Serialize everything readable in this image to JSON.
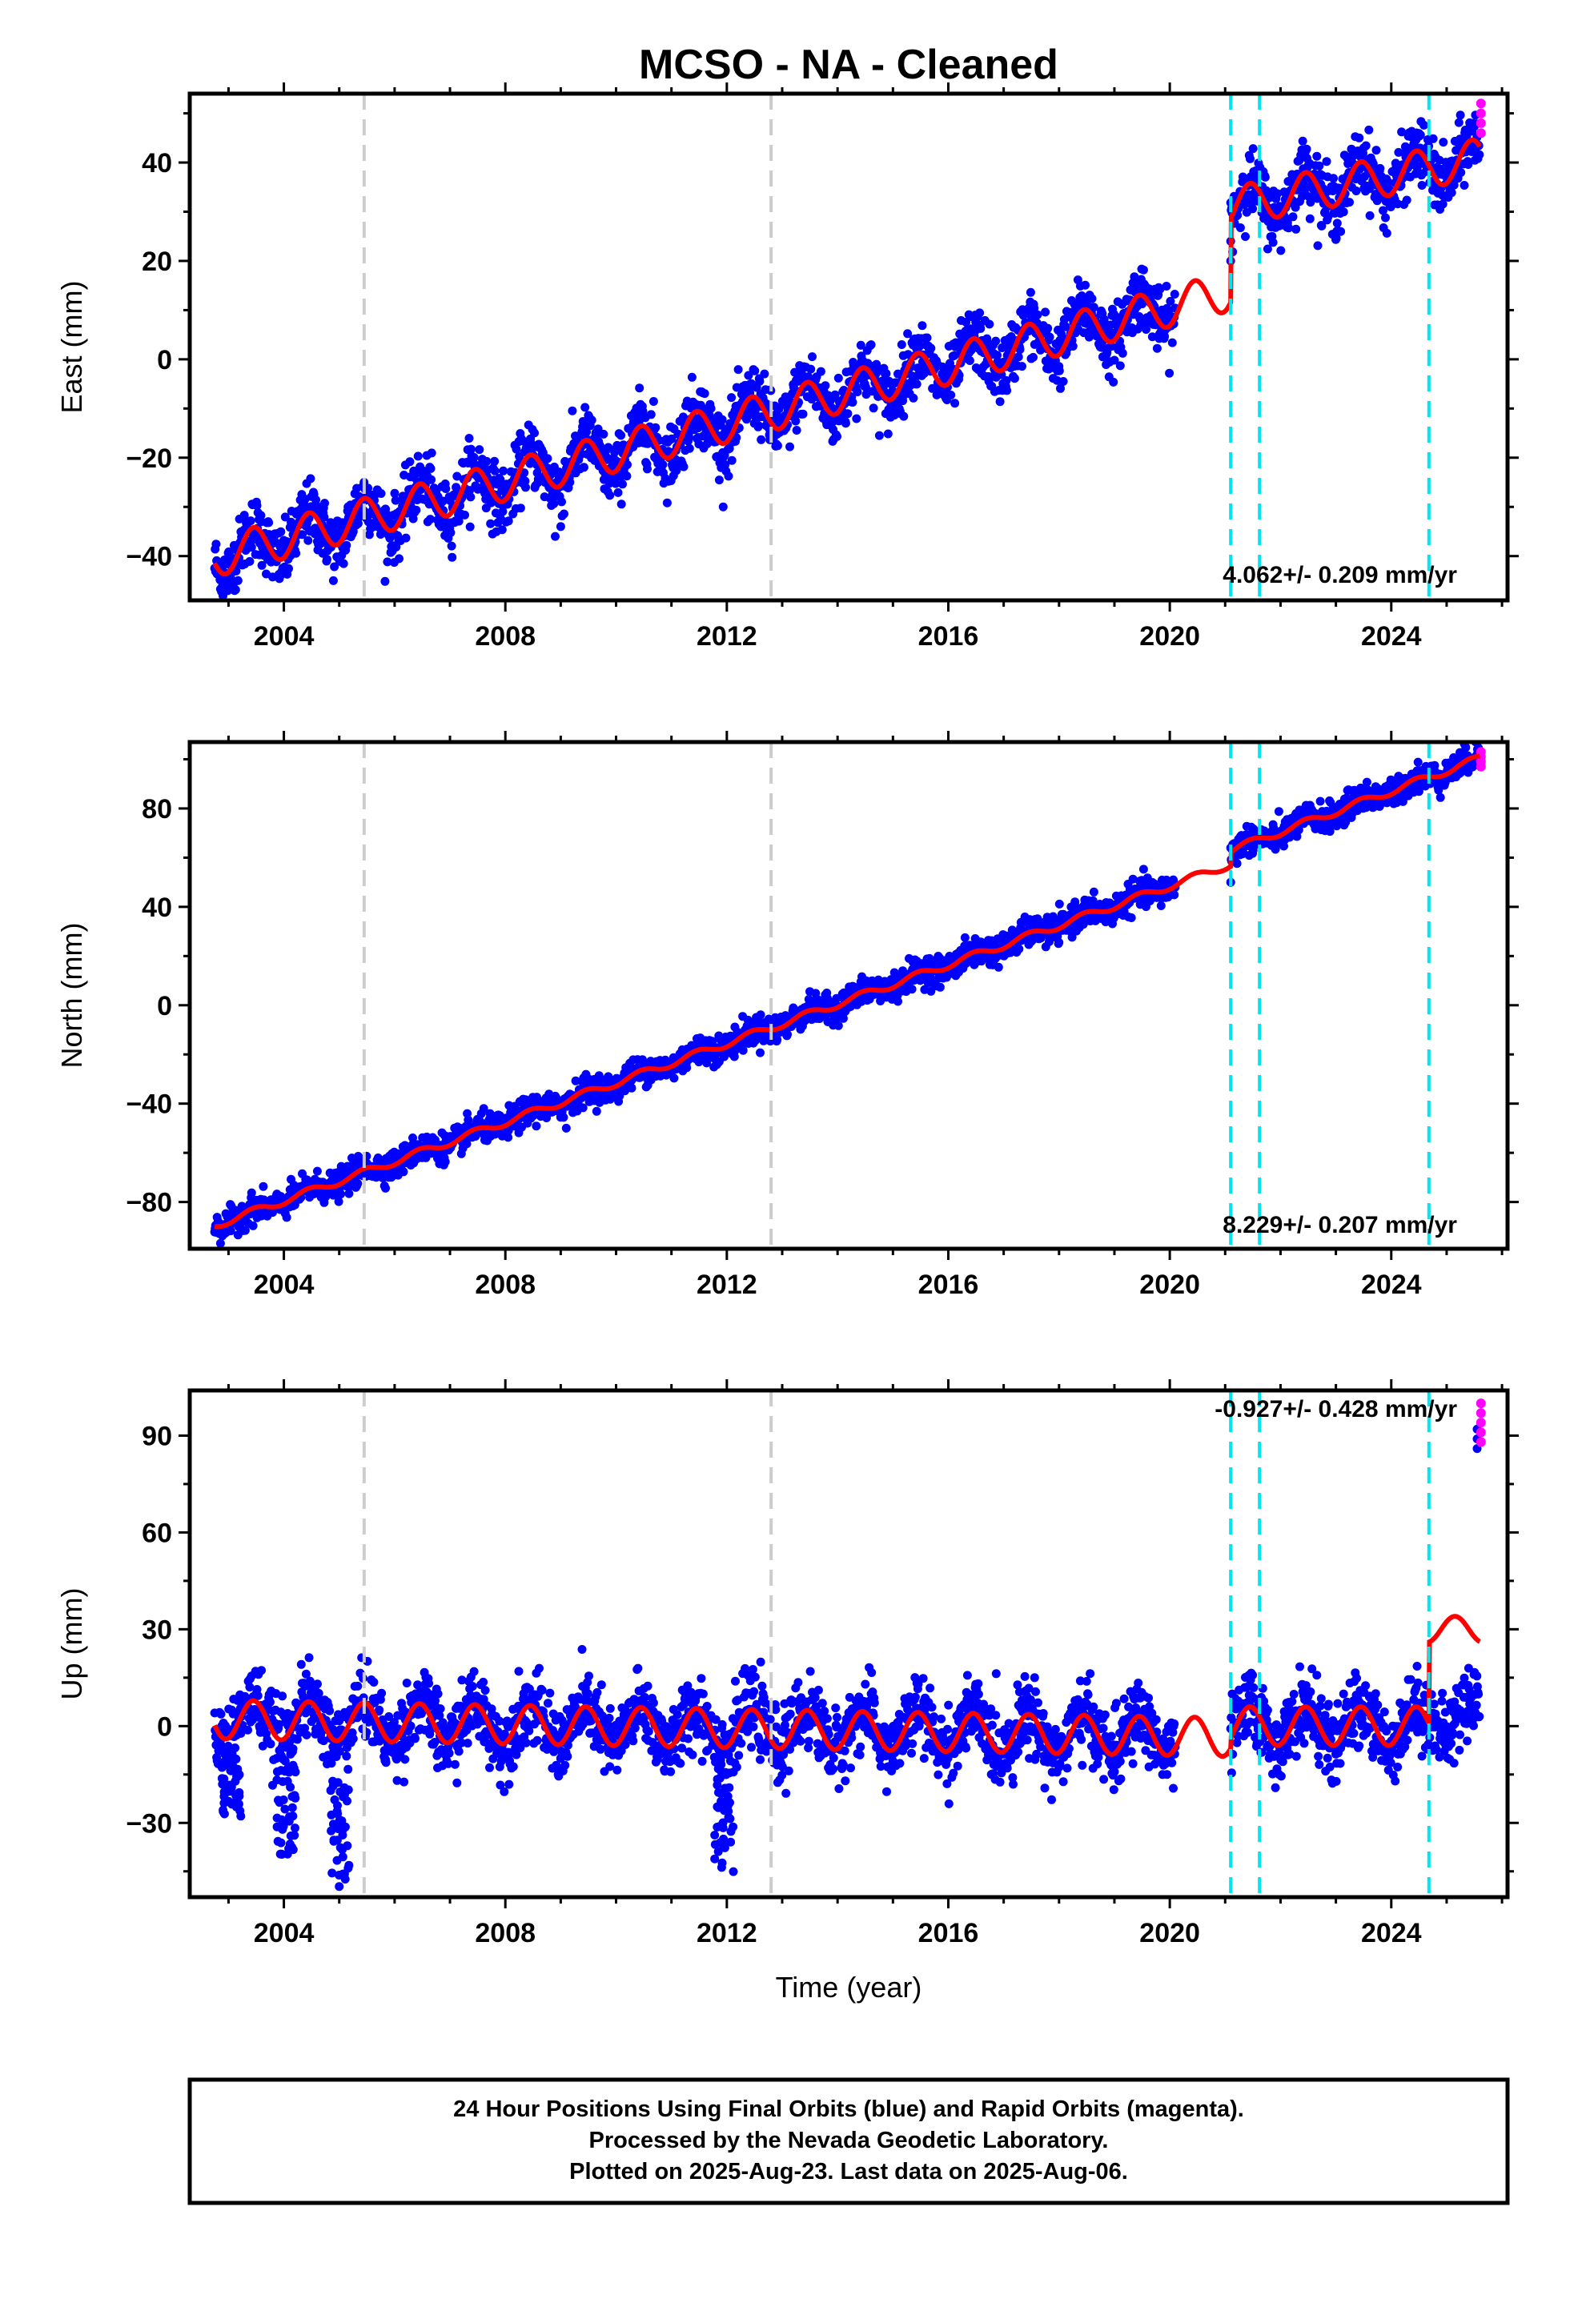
{
  "title": "MCSO  - NA - Cleaned",
  "xlabel": "Time (year)",
  "footer": {
    "line1": "24 Hour Positions Using Final Orbits (blue) and Rapid Orbits (magenta).",
    "line2": "Processed by the Nevada Geodetic Laboratory.",
    "line3": "Plotted on 2025-Aug-23. Last data on 2025-Aug-06."
  },
  "colors": {
    "final_orbits": "#0000ff",
    "rapid_orbits": "#ff00ff",
    "model": "#ff0000",
    "equipment_change": "#cccccc",
    "earthquake": "#00e5ee"
  },
  "chart_data": [
    {
      "type": "scatter",
      "panel": "east",
      "ylabel": "East (mm)",
      "rate_label": "4.062+/- 0.209 mm/yr",
      "xlim": [
        2002.3,
        2026.1
      ],
      "ylim": [
        -49,
        54
      ],
      "xticks": [
        2004,
        2008,
        2012,
        2016,
        2020,
        2024
      ],
      "yticks": [
        -40,
        -20,
        0,
        20,
        40
      ],
      "data_start": 2002.75,
      "data_end": 2025.6,
      "data_gap": [
        2020.1,
        2021.1
      ],
      "trend": {
        "value_2003": -39.5,
        "slope_before_2021": 2.95,
        "value_after_2021": 31,
        "slope_after_2021": 2.2
      },
      "seasonal_amplitude": 4,
      "scatter_noise": 3.2,
      "rapid_orbit_values": [
        46,
        48,
        50,
        52
      ],
      "outliers": [
        {
          "x": 2008.9,
          "y": -36
        },
        {
          "x": 2009.0,
          "y": -34
        },
        {
          "x": 2021.1,
          "y": 20
        },
        {
          "x": 2021.1,
          "y": 24
        }
      ],
      "grey_lines": [
        2005.45,
        2012.8
      ],
      "cyan_lines": [
        2021.1,
        2021.62,
        2024.68
      ]
    },
    {
      "type": "scatter",
      "panel": "north",
      "ylabel": "North (mm)",
      "rate_label": "8.229+/- 0.207 mm/yr",
      "xlim": [
        2002.3,
        2026.1
      ],
      "ylim": [
        -99,
        107
      ],
      "xticks": [
        2004,
        2008,
        2012,
        2016,
        2020,
        2024
      ],
      "yticks": [
        -80,
        -40,
        0,
        40,
        80
      ],
      "data_start": 2002.75,
      "data_end": 2025.6,
      "data_gap": [
        2020.1,
        2021.1
      ],
      "trend": {
        "value_2003": -87.5,
        "slope_before_2021": 8.0,
        "value_after_2021": 63,
        "slope_after_2021": 8.3
      },
      "seasonal_amplitude": 1.5,
      "scatter_noise": 2.8,
      "rapid_orbit_values": [
        97,
        99,
        101,
        103
      ],
      "outliers": [
        {
          "x": 2009.1,
          "y": -50
        },
        {
          "x": 2021.1,
          "y": 50
        }
      ],
      "grey_lines": [
        2005.45,
        2012.8
      ],
      "cyan_lines": [
        2021.1,
        2021.62,
        2024.68
      ]
    },
    {
      "type": "scatter",
      "panel": "up",
      "ylabel": "Up (mm)",
      "rate_label": "-0.927+/- 0.428 mm/yr",
      "xlim": [
        2002.3,
        2026.1
      ],
      "ylim": [
        -53,
        104
      ],
      "xticks": [
        2004,
        2008,
        2012,
        2016,
        2020,
        2024
      ],
      "yticks": [
        -30,
        0,
        30,
        60,
        90
      ],
      "data_start": 2002.75,
      "data_end": 2025.6,
      "data_gap": [
        2020.1,
        2021.1
      ],
      "trend": {
        "value_2003": 2,
        "slope_before_2021": -0.3,
        "value_after_2021": 0,
        "slope_after_2021": 0
      },
      "seasonal_amplitude": 6,
      "scatter_noise": 5.5,
      "post_event_offset": {
        "after": 2024.68,
        "model_value": 30,
        "data_value": 3
      },
      "rapid_orbit_values": [
        88,
        91,
        94,
        97,
        100
      ],
      "late_cluster_values": [
        86,
        89,
        92
      ],
      "dips": [
        {
          "x": 2005.0,
          "min": -50
        },
        {
          "x": 2004.05,
          "min": -40
        },
        {
          "x": 2011.95,
          "min": -47
        },
        {
          "x": 2003.05,
          "min": -28
        }
      ],
      "grey_lines": [
        2005.45,
        2012.8
      ],
      "cyan_lines": [
        2021.1,
        2021.62,
        2024.68
      ]
    }
  ]
}
